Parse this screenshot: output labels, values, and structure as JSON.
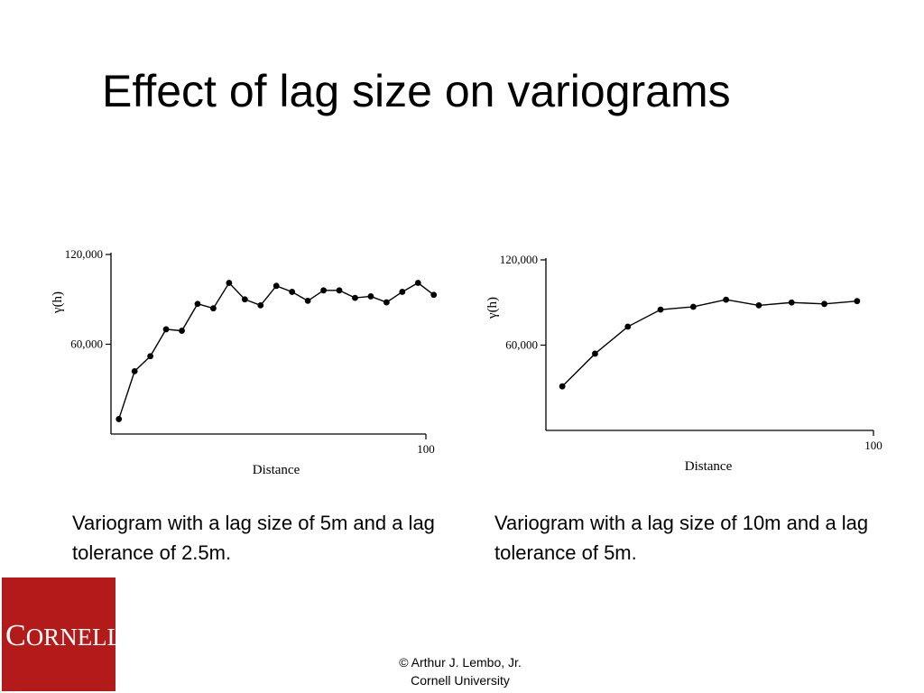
{
  "slide": {
    "title": "Effect of lag size on variograms",
    "caption_left": "Variogram with a lag size of 5m and a lag tolerance of 2.5m.",
    "caption_right": "Variogram with a lag size of 10m and a lag tolerance of 5m.",
    "copyright_line1": "© Arthur J. Lembo, Jr.",
    "copyright_line2": "Cornell University",
    "logo_text": "CORNELL",
    "logo_color": "#b31b1b"
  },
  "chart_data": [
    {
      "type": "line",
      "xlabel": "Distance",
      "ylabel": "γ(h)",
      "xlim": [
        0,
        100
      ],
      "ylim": [
        0,
        120000
      ],
      "y_ticks": [
        60000,
        120000
      ],
      "y_tick_labels": [
        "60,000",
        "120,000"
      ],
      "x_tick_labels": [
        "100"
      ],
      "marker": "filled-circle",
      "color": "#000000",
      "series": [
        {
          "x": [
            2.5,
            7.5,
            12.5,
            17.5,
            22.5,
            27.5,
            32.5,
            37.5,
            42.5,
            47.5,
            52.5,
            57.5,
            62.5,
            67.5,
            72.5,
            77.5,
            82.5,
            87.5,
            92.5,
            97.5,
            102.5
          ],
          "y": [
            10000,
            42000,
            52000,
            70000,
            69000,
            87000,
            84000,
            101000,
            90000,
            86000,
            99000,
            95000,
            89000,
            96000,
            96000,
            91000,
            92000,
            88000,
            95000,
            101000,
            93000
          ]
        }
      ]
    },
    {
      "type": "line",
      "xlabel": "Distance",
      "ylabel": "γ(h)",
      "xlim": [
        0,
        100
      ],
      "ylim": [
        0,
        120000
      ],
      "y_ticks": [
        60000,
        120000
      ],
      "y_tick_labels": [
        "60,000",
        "120,000"
      ],
      "x_tick_labels": [
        "100"
      ],
      "marker": "filled-circle",
      "color": "#000000",
      "series": [
        {
          "x": [
            5,
            15,
            25,
            35,
            45,
            55,
            65,
            75,
            85,
            95
          ],
          "y": [
            31000,
            54000,
            73000,
            85000,
            87000,
            92000,
            88000,
            90000,
            89000,
            91000
          ]
        }
      ]
    }
  ]
}
